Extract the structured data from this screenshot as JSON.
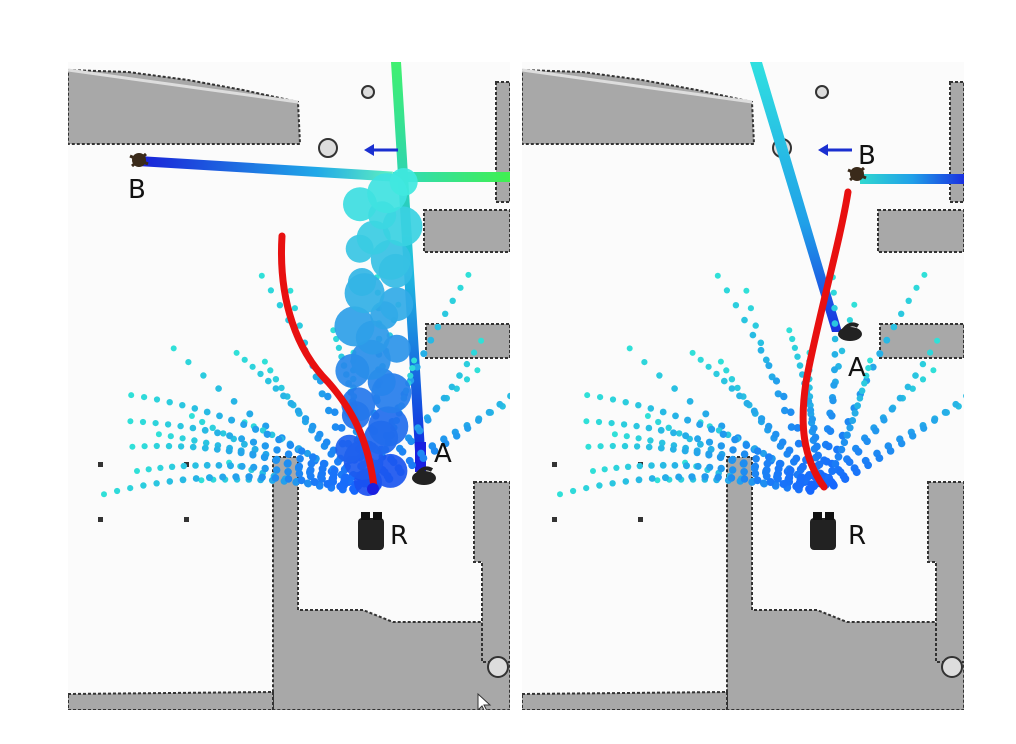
{
  "panels": [
    {
      "id": "left",
      "labels": {
        "robot": "R",
        "agent_a": "A",
        "agent_b": "B"
      },
      "colors": {
        "path": "#e81010",
        "samples_near": "#1560ff",
        "samples_far": "#30e0d8",
        "arrow": "#1a2fd0",
        "map_gray": "#a6a6a6"
      }
    },
    {
      "id": "right",
      "labels": {
        "robot": "R",
        "agent_a": "A",
        "agent_b": "B"
      },
      "colors": {
        "path": "#e81010",
        "samples_near": "#1560ff",
        "samples_far": "#30e0d8",
        "arrow": "#1a2fd0",
        "map_gray": "#a6a6a6"
      }
    }
  ]
}
